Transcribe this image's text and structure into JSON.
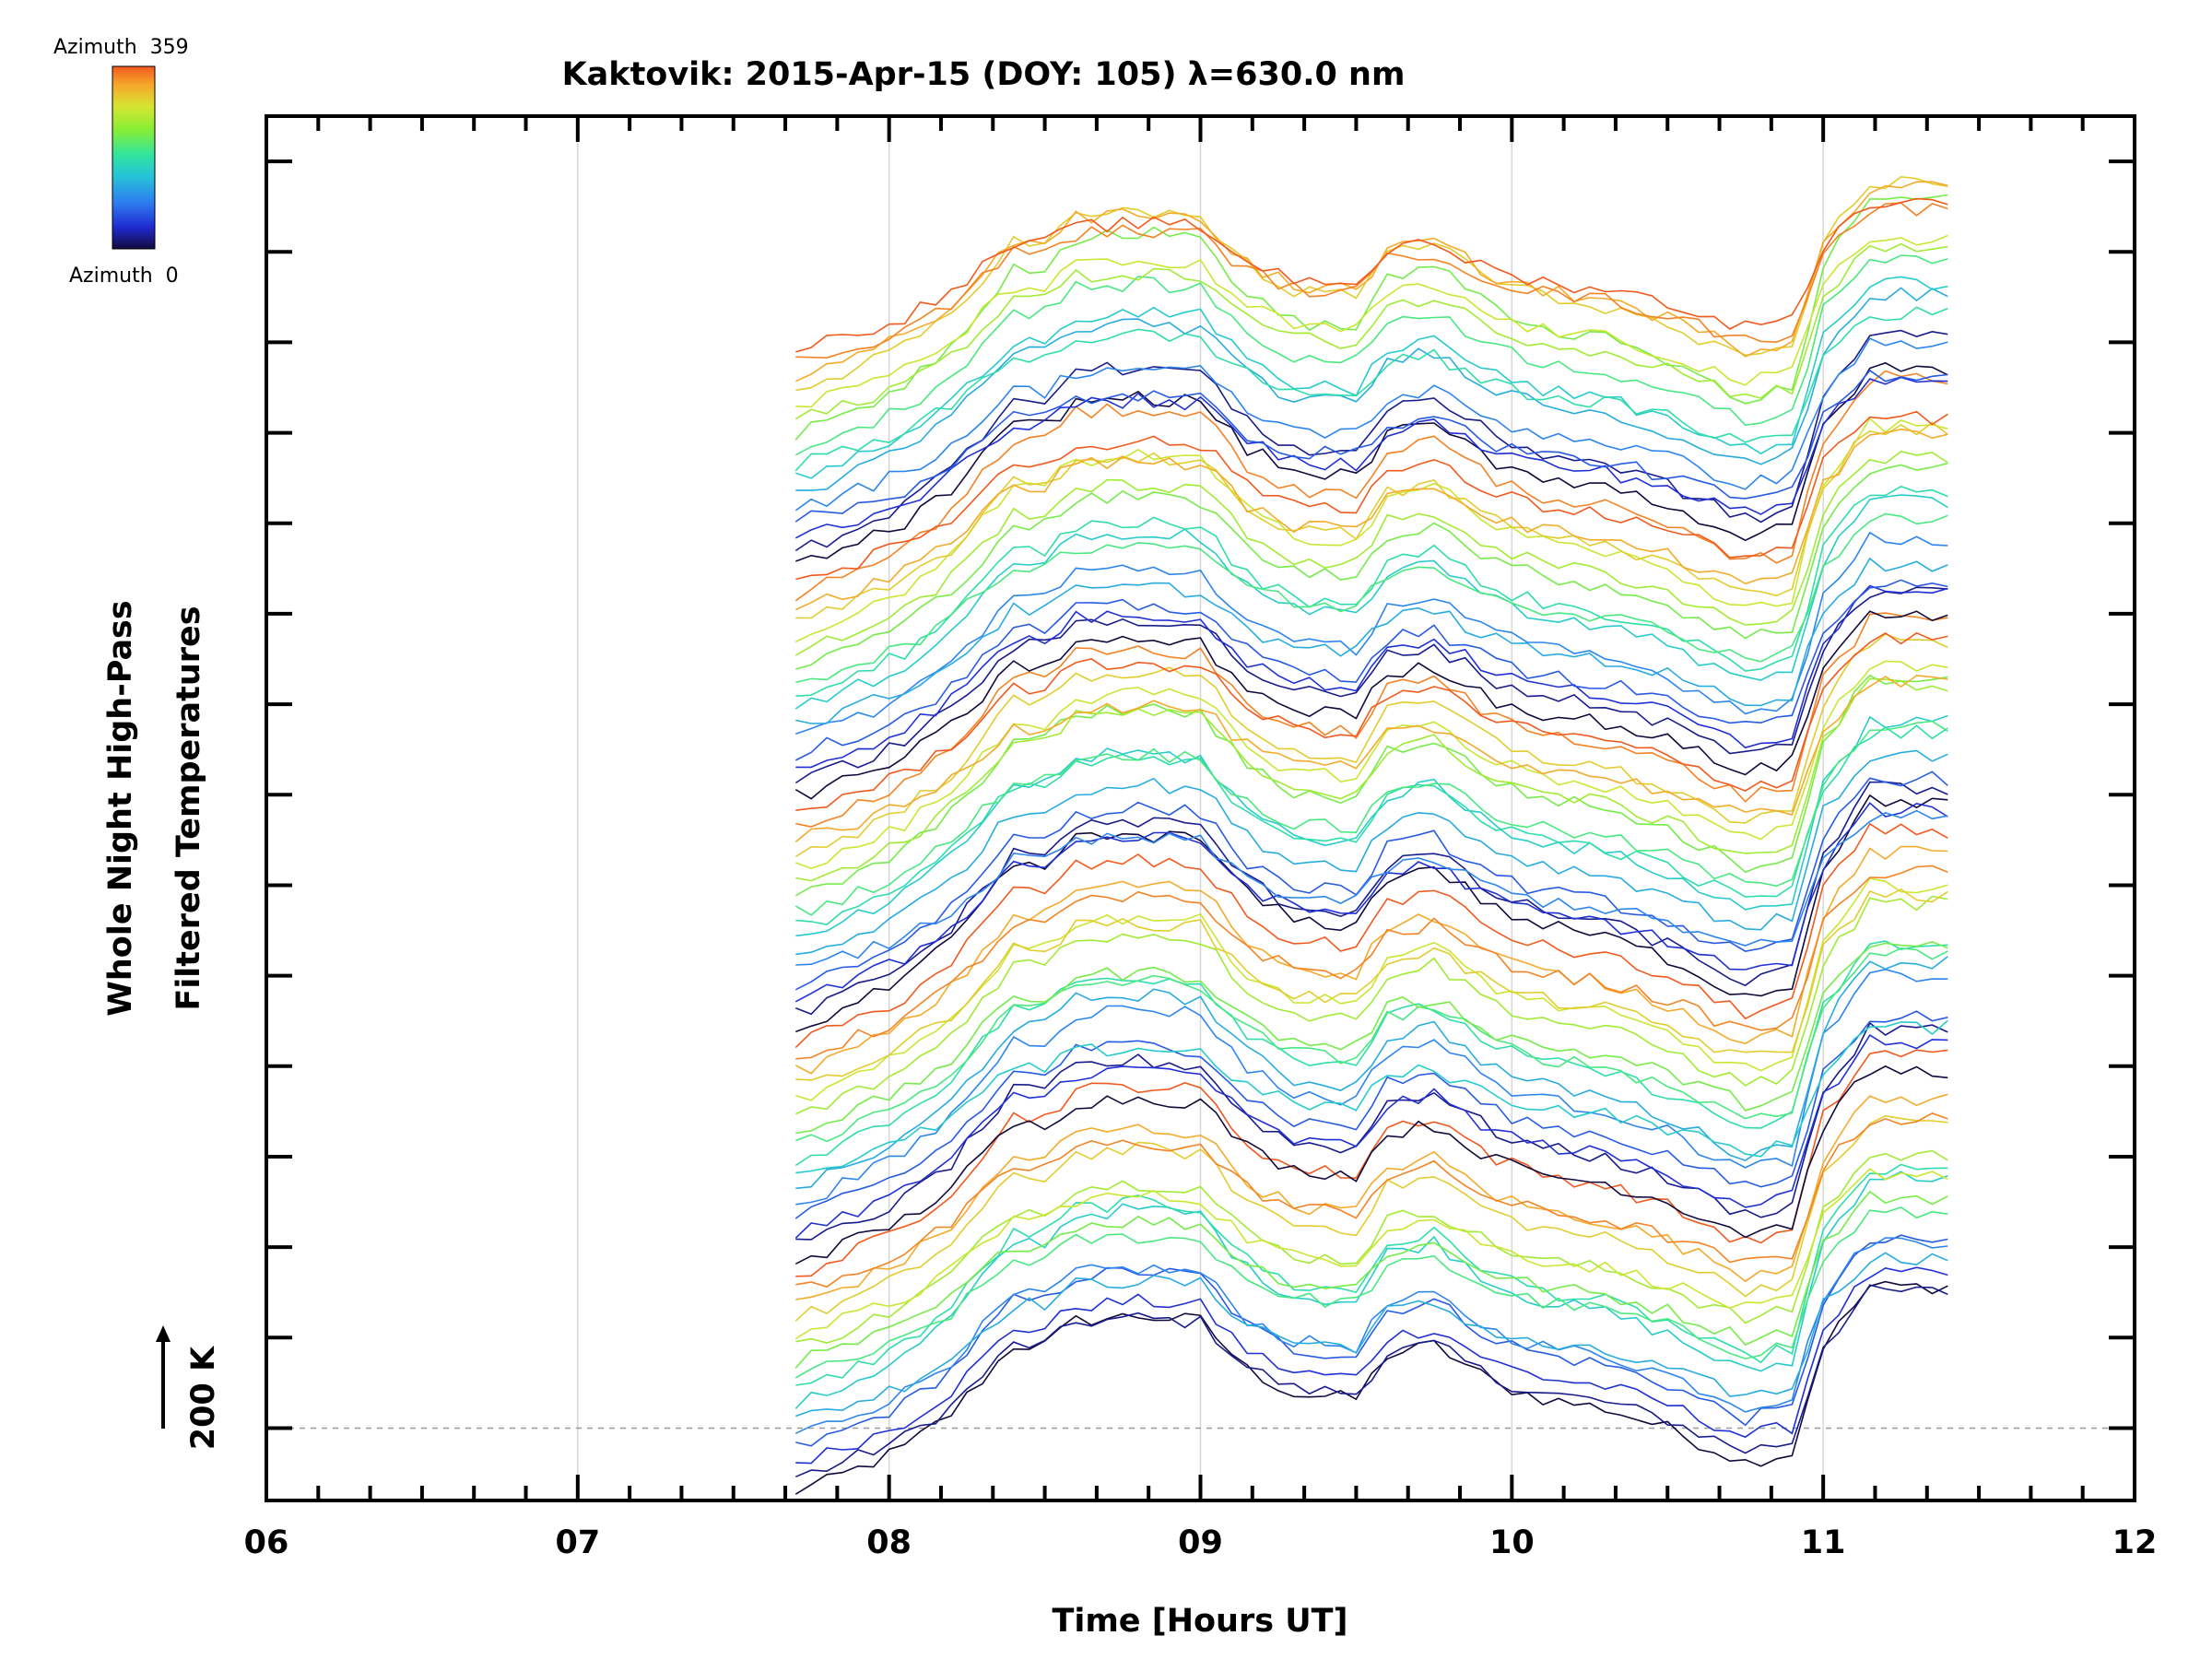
{
  "chart_data": {
    "type": "line",
    "title": "Kaktovik: 2015-Apr-15 (DOY: 105) λ=630.0 nm",
    "xlabel": "Time [Hours UT]",
    "ylabel_line1": "Whole Night High-Pass",
    "ylabel_line2": "Filtered Temperatures",
    "xlim": [
      6,
      12
    ],
    "x_tick_labels": [
      "06",
      "07",
      "08",
      "09",
      "10",
      "11",
      "12"
    ],
    "x_tick_values": [
      6,
      7,
      8,
      9,
      10,
      11,
      12
    ],
    "ylim": [
      -80,
      1450
    ],
    "y_major_ticks": [
      0,
      100,
      200,
      300,
      400,
      500,
      600,
      700,
      800,
      900,
      1000,
      1100,
      1200,
      1300,
      1400
    ],
    "scale_bar_label": "200 K",
    "scale_bar_value": 200,
    "baseline_value": 0,
    "legend": {
      "label_max": "Azimuth  359",
      "label_min": "Azimuth  0",
      "colormap": "rainbow",
      "colors": [
        "#120a3c",
        "#1f2bd2",
        "#2e7bf0",
        "#25c4d8",
        "#33e69b",
        "#86ee36",
        "#d6e531",
        "#f6a62a",
        "#f15a1e"
      ]
    },
    "profile": {
      "x": [
        7.7,
        7.8,
        7.95,
        8.05,
        8.2,
        8.4,
        8.5,
        8.6,
        8.8,
        9.0,
        9.15,
        9.3,
        9.5,
        9.6,
        9.75,
        9.95,
        10.1,
        10.3,
        10.5,
        10.6,
        10.75,
        10.9,
        11.0,
        11.15,
        11.4
      ],
      "y": [
        0,
        10,
        30,
        45,
        80,
        150,
        150,
        175,
        180,
        175,
        125,
        100,
        95,
        140,
        150,
        110,
        95,
        85,
        65,
        50,
        30,
        40,
        150,
        210,
        210
      ]
    },
    "series_count": 80,
    "offset_step": 16,
    "start_offset": -70
  }
}
